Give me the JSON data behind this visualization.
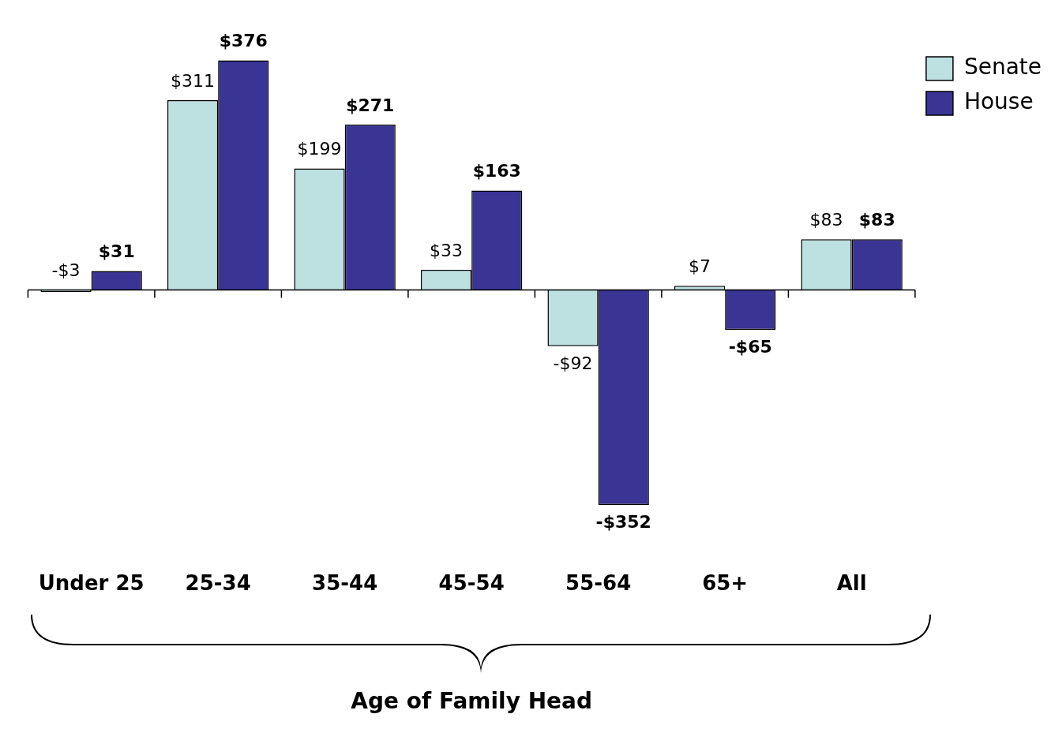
{
  "chart_data": {
    "type": "bar",
    "xlabel": "Age of Family Head",
    "categories": [
      "Under 25",
      "25-34",
      "35-44",
      "45-54",
      "55-64",
      "65+",
      "All"
    ],
    "series": [
      {
        "name": "Senate",
        "color": "#bde0e0",
        "values": [
          -3,
          311,
          199,
          33,
          -92,
          7,
          83
        ],
        "value_labels": [
          "-$3",
          "$311",
          "$199",
          "$33",
          "-$92",
          "$7",
          "$83"
        ]
      },
      {
        "name": "House",
        "color": "#3a3494",
        "values": [
          31,
          376,
          271,
          163,
          -352,
          -65,
          83
        ],
        "value_labels": [
          "$31",
          "$376",
          "$271",
          "$163",
          "-$352",
          "-$65",
          "$83"
        ]
      }
    ],
    "legend": "top right",
    "grid": false
  }
}
